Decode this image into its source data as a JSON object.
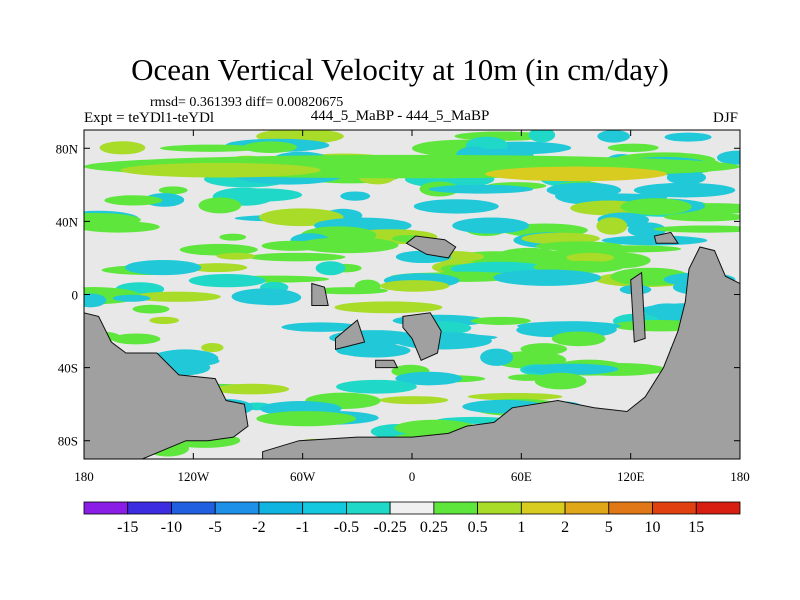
{
  "chart_data": {
    "type": "heatmap",
    "title": "Ocean Vertical Velocity at 10m (in cm/day)",
    "stats_line": "rmsd= 0.361393  diff= 0.00820675",
    "left_label": "Expt = teYDl1-teYDl",
    "center_label": "444_5_MaBP - 444_5_MaBP",
    "right_label": "DJF",
    "x_range": [
      -180,
      180
    ],
    "y_range": [
      -90,
      90
    ],
    "x_ticks": [
      {
        "value": -180,
        "label": "180"
      },
      {
        "value": -120,
        "label": "120W"
      },
      {
        "value": -60,
        "label": "60W"
      },
      {
        "value": 0,
        "label": "0"
      },
      {
        "value": 60,
        "label": "60E"
      },
      {
        "value": 120,
        "label": "120E"
      },
      {
        "value": 180,
        "label": "180"
      }
    ],
    "y_ticks": [
      {
        "value": 80,
        "label": "80N"
      },
      {
        "value": 40,
        "label": "40N"
      },
      {
        "value": 0,
        "label": "0"
      },
      {
        "value": -40,
        "label": "40S"
      },
      {
        "value": -80,
        "label": "80S"
      }
    ],
    "colorbar": {
      "labels": [
        "-15",
        "-10",
        "-5",
        "-2",
        "-1",
        "-0.5",
        "-0.25",
        "0.25",
        "0.5",
        "1",
        "2",
        "5",
        "10",
        "15"
      ],
      "colors": [
        "#8b1ee6",
        "#3c2ee0",
        "#2060e0",
        "#1e90e8",
        "#10b4e0",
        "#14c8e0",
        "#20d8c8",
        "#f0f0f0",
        "#5ee63c",
        "#a8dc28",
        "#d8cc20",
        "#e0a818",
        "#e07818",
        "#e04010",
        "#d81e10"
      ]
    },
    "palette": {
      "background": "#e8e8e8",
      "land": "#a0a0a0",
      "cyan": "#20c8d8",
      "teal": "#20d8c8",
      "green": "#5ee63c",
      "lime": "#a8dc28",
      "yellow": "#d8cc20"
    }
  }
}
